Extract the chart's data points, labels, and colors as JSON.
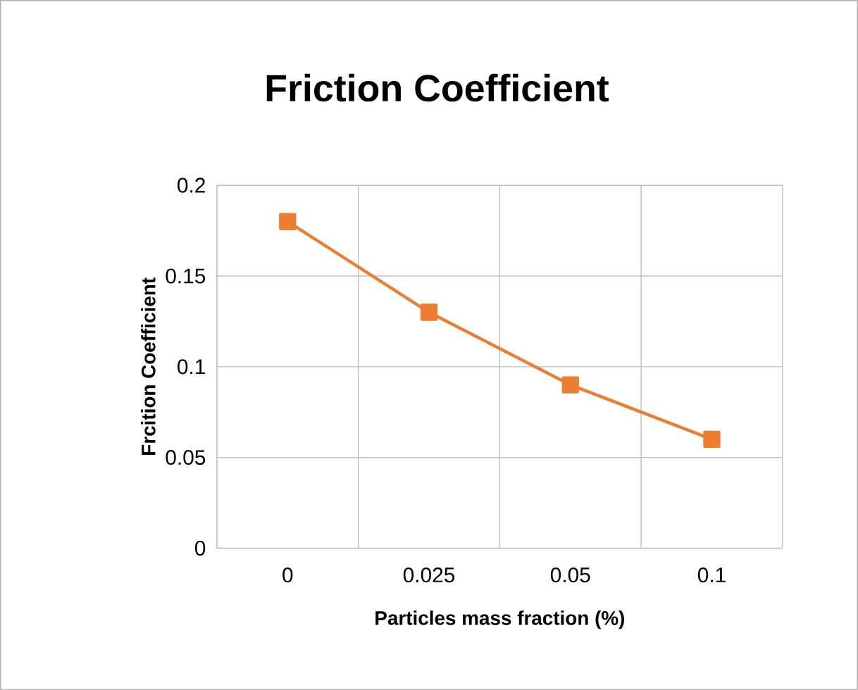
{
  "chart_data": {
    "type": "line",
    "title": "Friction Coefficient",
    "xlabel": "Particles mass fraction (%)",
    "ylabel": "Frcition Coefficient",
    "categories": [
      "0",
      "0.025",
      "0.05",
      "0.1"
    ],
    "series": [
      {
        "color": "#ed7d31",
        "values": [
          0.18,
          0.13,
          0.09,
          0.06
        ]
      }
    ],
    "ylim": [
      0,
      0.2
    ],
    "yticks": [
      0,
      0.05,
      0.1,
      0.15,
      0.2
    ],
    "grid": true,
    "marker": "square",
    "line_style": "solid"
  }
}
